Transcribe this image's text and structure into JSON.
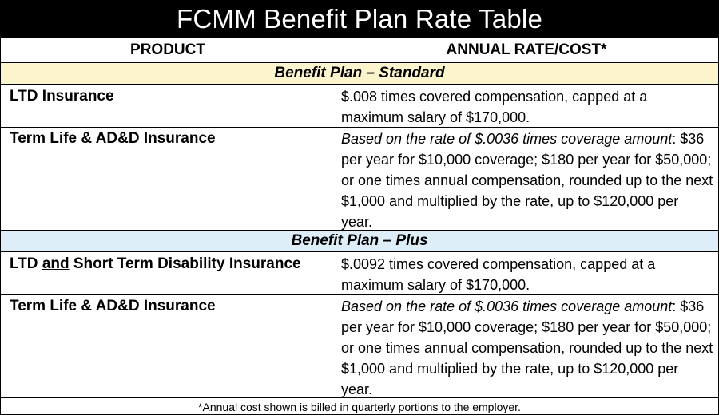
{
  "title": "FCMM Benefit Plan Rate Table",
  "headers": {
    "product": "PRODUCT",
    "rate": "ANNUAL RATE/COST*"
  },
  "sections": {
    "standard": "Benefit Plan – Standard",
    "plus": "Benefit Plan – Plus"
  },
  "rows": [
    {
      "product": "LTD Insurance",
      "rate_lead": "",
      "rate_text": "$.008 times covered compensation, capped at a maximum salary of $170,000."
    },
    {
      "product": "Term Life & AD&D Insurance",
      "rate_lead": "Based on the rate of $.0036 times coverage amount",
      "rate_text": ": $36 per year for $10,000 coverage; $180 per year for $50,000; or one times annual compensation, rounded up to the next $1,000 and multiplied by the rate, up to $120,000 per year."
    },
    {
      "product_parts": [
        "LTD ",
        "and",
        " Short Term Disability Insurance"
      ],
      "rate_lead": "",
      "rate_text": "$.0092 times covered compensation, capped at a maximum salary of $170,000."
    },
    {
      "product": "Term Life & AD&D Insurance",
      "rate_lead": "Based on the rate of $.0036 times coverage amount",
      "rate_text": ": $36 per year for $10,000 coverage; $180 per year for $50,000; or one times annual compensation, rounded up to the next $1,000 and multiplied by the rate, up to $120,000 per year."
    }
  ],
  "footnote": "*Annual cost shown is billed in quarterly portions to the employer."
}
